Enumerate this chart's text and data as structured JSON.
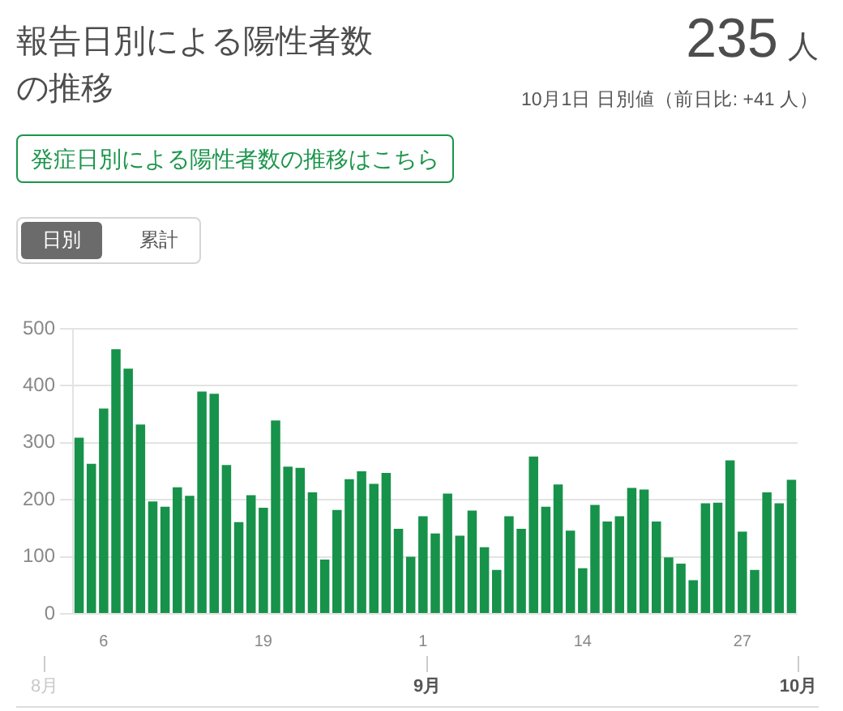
{
  "chart_data": {
    "type": "bar",
    "title": "報告日別による陽性者数の推移",
    "annotations": [
      "235 人",
      "10月1日 日別値（前日比: +41 人）",
      "発症日別による陽性者数の推移はこちら",
      "日別",
      "累計"
    ],
    "x": [
      "--08-04",
      "--08-05",
      "--08-06",
      "--08-07",
      "--08-08",
      "--08-09",
      "--08-10",
      "--08-11",
      "--08-12",
      "--08-13",
      "--08-14",
      "--08-15",
      "--08-16",
      "--08-17",
      "--08-18",
      "--08-19",
      "--08-20",
      "--08-21",
      "--08-22",
      "--08-23",
      "--08-24",
      "--08-25",
      "--08-26",
      "--08-27",
      "--08-28",
      "--08-29",
      "--08-30",
      "--08-31",
      "--09-01",
      "--09-02",
      "--09-03",
      "--09-04",
      "--09-05",
      "--09-06",
      "--09-07",
      "--09-08",
      "--09-09",
      "--09-10",
      "--09-11",
      "--09-12",
      "--09-13",
      "--09-14",
      "--09-15",
      "--09-16",
      "--09-17",
      "--09-18",
      "--09-19",
      "--09-20",
      "--09-21",
      "--09-22",
      "--09-23",
      "--09-24",
      "--09-25",
      "--09-26",
      "--09-27",
      "--09-28",
      "--09-29",
      "--09-30",
      "--10-01"
    ],
    "values": [
      309,
      263,
      360,
      464,
      430,
      332,
      197,
      188,
      222,
      207,
      390,
      386,
      261,
      161,
      208,
      186,
      339,
      258,
      256,
      213,
      95,
      182,
      236,
      250,
      228,
      247,
      149,
      100,
      171,
      141,
      211,
      137,
      181,
      117,
      77,
      171,
      149,
      276,
      188,
      227,
      146,
      80,
      191,
      162,
      171,
      221,
      218,
      162,
      99,
      88,
      59,
      194,
      195,
      269,
      144,
      77,
      213,
      194,
      235
    ],
    "color": "#17924a",
    "xlim": [
      "--08-03T12:00",
      "--10-01T12:00"
    ],
    "xticks": [
      {
        "value": "--08-06",
        "label": "6"
      },
      {
        "value": "--08-19",
        "label": "19"
      },
      {
        "value": "--09-01",
        "label": "1"
      },
      {
        "value": "--09-14",
        "label": "14"
      },
      {
        "value": "--09-27",
        "label": "27"
      }
    ],
    "x2lim": [
      "--08-01",
      "--10-01"
    ],
    "x2ticks": [
      {
        "value": "--08-01",
        "label": "8月"
      },
      {
        "value": "--09-01",
        "label": "9月"
      },
      {
        "value": "--10-01",
        "label": "10月"
      }
    ],
    "ylim": [
      0,
      500
    ],
    "yticks": [
      0,
      100,
      200,
      300,
      400,
      500
    ],
    "grid": "y"
  }
}
